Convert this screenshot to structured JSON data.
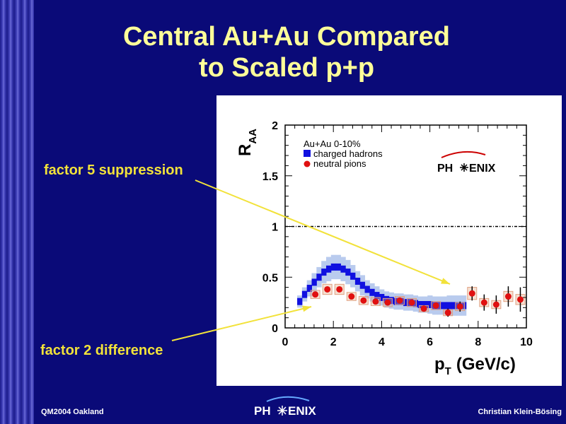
{
  "slide": {
    "title_line1": "Central Au+Au Compared",
    "title_line2": "to Scaled p+p",
    "annotation_suppression": "factor 5 suppression",
    "annotation_difference": "factor 2 difference",
    "footer_left": "QM2004 Oakland",
    "footer_right": "Christian Klein-Bösing",
    "footer_logo_left": "PH",
    "footer_logo_right": "ENIX",
    "colors": {
      "background": "#0a0a78",
      "title": "#ffff99",
      "annotation": "#f2e23a"
    }
  },
  "chart_data": {
    "type": "scatter",
    "xlabel_main": "p",
    "xlabel_sub": "T",
    "xlabel_unit": "(GeV/c)",
    "ylabel_main": "R",
    "ylabel_sub": "AA",
    "xlim": [
      0,
      10
    ],
    "ylim": [
      0,
      2
    ],
    "x_ticks": [
      0,
      2,
      4,
      6,
      8,
      10
    ],
    "y_ticks": [
      0,
      0.5,
      1,
      1.5,
      2
    ],
    "y_tick_labels": [
      "0",
      "0.5",
      "1",
      "1.5",
      "2"
    ],
    "reference_line": 1,
    "legend_title": "Au+Au 0-10%",
    "logo_left": "PH",
    "logo_right": "ENIX",
    "series": [
      {
        "name": "charged hadrons",
        "marker": "square",
        "color": "#1010e0",
        "x": [
          0.6,
          0.8,
          1.0,
          1.2,
          1.4,
          1.6,
          1.8,
          2.0,
          2.2,
          2.4,
          2.6,
          2.8,
          3.0,
          3.2,
          3.4,
          3.6,
          3.8,
          4.0,
          4.2,
          4.4,
          4.6,
          4.8,
          5.0,
          5.2,
          5.4,
          5.6,
          5.8,
          6.0,
          6.2,
          6.4,
          6.6,
          6.8,
          7.0,
          7.2,
          7.4
        ],
        "y": [
          0.26,
          0.33,
          0.39,
          0.45,
          0.5,
          0.55,
          0.58,
          0.6,
          0.6,
          0.58,
          0.55,
          0.51,
          0.46,
          0.42,
          0.38,
          0.35,
          0.32,
          0.3,
          0.28,
          0.27,
          0.26,
          0.26,
          0.25,
          0.25,
          0.24,
          0.23,
          0.23,
          0.23,
          0.22,
          0.22,
          0.22,
          0.22,
          0.22,
          0.22,
          0.22
        ],
        "band_half_width": [
          0.06,
          0.07,
          0.08,
          0.09,
          0.1,
          0.11,
          0.12,
          0.12,
          0.12,
          0.12,
          0.12,
          0.11,
          0.1,
          0.1,
          0.09,
          0.09,
          0.09,
          0.08,
          0.08,
          0.08,
          0.08,
          0.08,
          0.08,
          0.08,
          0.08,
          0.08,
          0.08,
          0.09,
          0.09,
          0.09,
          0.09,
          0.1,
          0.1,
          0.1,
          0.1
        ]
      },
      {
        "name": "neutral pions",
        "marker": "circle",
        "color": "#e01010",
        "x": [
          1.25,
          1.75,
          2.25,
          2.75,
          3.25,
          3.75,
          4.25,
          4.75,
          5.25,
          5.75,
          6.25,
          6.75,
          7.25,
          7.75,
          8.25,
          8.75,
          9.25,
          9.75
        ],
        "y": [
          0.33,
          0.38,
          0.38,
          0.31,
          0.27,
          0.26,
          0.25,
          0.27,
          0.25,
          0.19,
          0.22,
          0.15,
          0.21,
          0.34,
          0.25,
          0.23,
          0.31,
          0.28
        ],
        "stat_err": [
          0.02,
          0.02,
          0.02,
          0.02,
          0.02,
          0.02,
          0.02,
          0.02,
          0.03,
          0.03,
          0.03,
          0.04,
          0.05,
          0.07,
          0.08,
          0.09,
          0.1,
          0.12
        ],
        "sys_err": [
          0.04,
          0.05,
          0.05,
          0.04,
          0.04,
          0.04,
          0.04,
          0.04,
          0.04,
          0.03,
          0.04,
          0.03,
          0.04,
          0.06,
          0.04,
          0.04,
          0.05,
          0.05
        ]
      }
    ]
  }
}
